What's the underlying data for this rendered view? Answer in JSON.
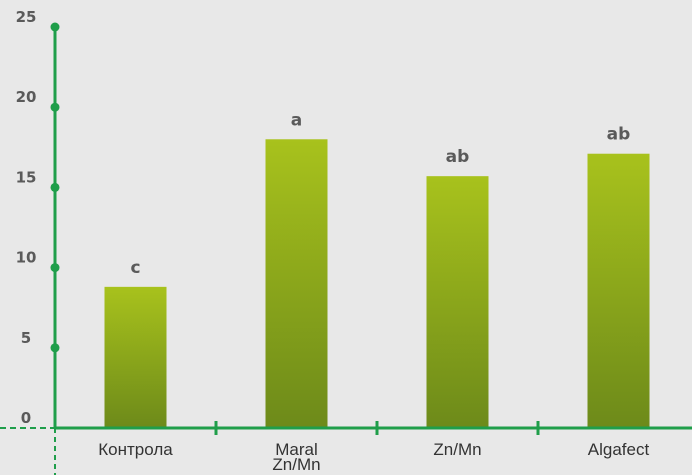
{
  "chart_data": {
    "type": "bar",
    "categories": [
      "Контрола",
      "Maral Zn/Mn",
      "Zn/Mn",
      "Algafect"
    ],
    "category_lines": [
      [
        "Контрола"
      ],
      [
        "Maral",
        "Zn/Mn"
      ],
      [
        "Zn/Mn"
      ],
      [
        "Algafect"
      ]
    ],
    "values": [
      8.8,
      18.0,
      15.7,
      17.1
    ],
    "data_labels": [
      "c",
      "a",
      "ab",
      "ab"
    ],
    "yticks": [
      "0",
      "5",
      "10",
      "15",
      "20",
      "25"
    ],
    "ylim": [
      0,
      25
    ],
    "grid": false,
    "colors": {
      "axis": "#1f9e4a",
      "bar_top": "#a8c21c",
      "bar_bottom": "#6d8a1a",
      "text": "#5a5a5a",
      "background": "#e8e8e8"
    }
  }
}
